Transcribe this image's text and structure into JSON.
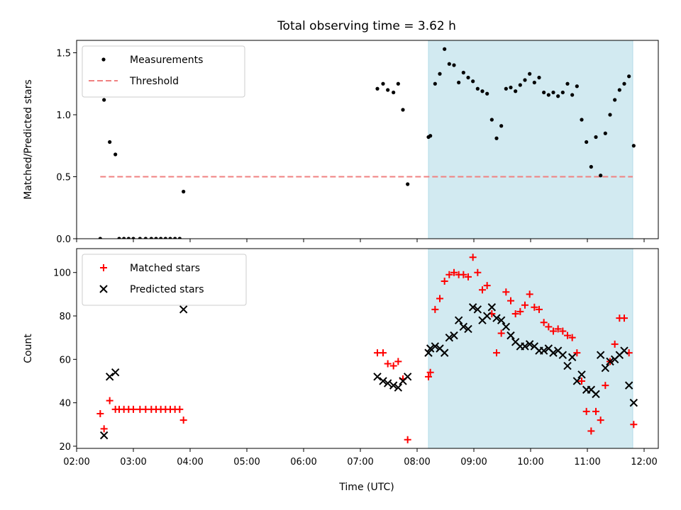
{
  "figure": {
    "title": "Total observing time = 3.62 h",
    "xlabel": "Time (UTC)"
  },
  "chart_data": [
    {
      "type": "scatter",
      "ylabel": "Matched/Predicted stars",
      "xlim": [
        "02:00",
        "12:15"
      ],
      "ylim": [
        0,
        1.6
      ],
      "yticks": [
        "0.0",
        "0.5",
        "1.0",
        "1.5"
      ],
      "xticks": [
        "02:00",
        "03:00",
        "04:00",
        "05:00",
        "06:00",
        "07:00",
        "08:00",
        "09:00",
        "10:00",
        "11:00",
        "12:00"
      ],
      "show_xticklabels": false,
      "grid": false,
      "legend": "upper left",
      "shaded_span": {
        "x0": "08:12",
        "x1": "11:48",
        "color": "#add8e6"
      },
      "threshold": {
        "name": "Threshold",
        "value": 0.5,
        "x0": "02:25",
        "x1": "11:48",
        "color": "#f08080",
        "style": "dashed"
      },
      "series": [
        {
          "name": "Measurements",
          "marker": "dot",
          "color": "#000000",
          "points": [
            [
              "02:25",
              0.0
            ],
            [
              "02:29",
              1.12
            ],
            [
              "02:35",
              0.78
            ],
            [
              "02:41",
              0.68
            ],
            [
              "02:45",
              0.0
            ],
            [
              "02:50",
              0.0
            ],
            [
              "02:55",
              0.0
            ],
            [
              "03:00",
              0.0
            ],
            [
              "03:07",
              0.0
            ],
            [
              "03:13",
              0.0
            ],
            [
              "03:19",
              0.0
            ],
            [
              "03:24",
              0.0
            ],
            [
              "03:29",
              0.0
            ],
            [
              "03:34",
              0.0
            ],
            [
              "03:39",
              0.0
            ],
            [
              "03:44",
              0.0
            ],
            [
              "03:49",
              0.0
            ],
            [
              "03:53",
              0.38
            ],
            [
              "07:18",
              1.21
            ],
            [
              "07:24",
              1.25
            ],
            [
              "07:29",
              1.2
            ],
            [
              "07:35",
              1.18
            ],
            [
              "07:40",
              1.25
            ],
            [
              "07:45",
              1.04
            ],
            [
              "07:50",
              0.44
            ],
            [
              "08:12",
              0.82
            ],
            [
              "08:14",
              0.83
            ],
            [
              "08:19",
              1.25
            ],
            [
              "08:24",
              1.33
            ],
            [
              "08:29",
              1.53
            ],
            [
              "08:34",
              1.41
            ],
            [
              "08:39",
              1.4
            ],
            [
              "08:44",
              1.26
            ],
            [
              "08:49",
              1.34
            ],
            [
              "08:54",
              1.3
            ],
            [
              "08:59",
              1.27
            ],
            [
              "09:04",
              1.21
            ],
            [
              "09:09",
              1.19
            ],
            [
              "09:14",
              1.17
            ],
            [
              "09:19",
              0.96
            ],
            [
              "09:24",
              0.81
            ],
            [
              "09:29",
              0.91
            ],
            [
              "09:34",
              1.21
            ],
            [
              "09:39",
              1.22
            ],
            [
              "09:44",
              1.19
            ],
            [
              "09:49",
              1.24
            ],
            [
              "09:54",
              1.28
            ],
            [
              "09:59",
              1.33
            ],
            [
              "10:04",
              1.26
            ],
            [
              "10:09",
              1.3
            ],
            [
              "10:14",
              1.18
            ],
            [
              "10:19",
              1.16
            ],
            [
              "10:24",
              1.18
            ],
            [
              "10:29",
              1.15
            ],
            [
              "10:34",
              1.18
            ],
            [
              "10:39",
              1.25
            ],
            [
              "10:44",
              1.16
            ],
            [
              "10:49",
              1.23
            ],
            [
              "10:54",
              0.96
            ],
            [
              "10:59",
              0.78
            ],
            [
              "11:04",
              0.58
            ],
            [
              "11:09",
              0.82
            ],
            [
              "11:14",
              0.51
            ],
            [
              "11:19",
              0.85
            ],
            [
              "11:24",
              1.0
            ],
            [
              "11:29",
              1.12
            ],
            [
              "11:34",
              1.2
            ],
            [
              "11:39",
              1.25
            ],
            [
              "11:44",
              1.31
            ],
            [
              "11:49",
              0.75
            ]
          ]
        }
      ]
    },
    {
      "type": "scatter",
      "ylabel": "Count",
      "xlabel": "Time (UTC)",
      "xlim": [
        "02:00",
        "12:15"
      ],
      "ylim": [
        19,
        111
      ],
      "yticks": [
        "20",
        "40",
        "60",
        "80",
        "100"
      ],
      "xticks": [
        "02:00",
        "03:00",
        "04:00",
        "05:00",
        "06:00",
        "07:00",
        "08:00",
        "09:00",
        "10:00",
        "11:00",
        "12:00"
      ],
      "grid": false,
      "legend": "upper left",
      "shaded_span": {
        "x0": "08:12",
        "x1": "11:48",
        "color": "#add8e6"
      },
      "series": [
        {
          "name": "Matched stars",
          "marker": "plus",
          "color": "#ff0000",
          "points": [
            [
              "02:25",
              35
            ],
            [
              "02:29",
              28
            ],
            [
              "02:35",
              41
            ],
            [
              "02:41",
              37
            ],
            [
              "02:45",
              37
            ],
            [
              "02:50",
              37
            ],
            [
              "02:55",
              37
            ],
            [
              "03:00",
              37
            ],
            [
              "03:07",
              37
            ],
            [
              "03:13",
              37
            ],
            [
              "03:19",
              37
            ],
            [
              "03:24",
              37
            ],
            [
              "03:29",
              37
            ],
            [
              "03:34",
              37
            ],
            [
              "03:39",
              37
            ],
            [
              "03:44",
              37
            ],
            [
              "03:49",
              37
            ],
            [
              "03:53",
              32
            ],
            [
              "07:18",
              63
            ],
            [
              "07:24",
              63
            ],
            [
              "07:29",
              58
            ],
            [
              "07:35",
              57
            ],
            [
              "07:40",
              59
            ],
            [
              "07:45",
              51
            ],
            [
              "07:50",
              23
            ],
            [
              "08:12",
              52
            ],
            [
              "08:14",
              54
            ],
            [
              "08:19",
              83
            ],
            [
              "08:24",
              88
            ],
            [
              "08:29",
              96
            ],
            [
              "08:34",
              99
            ],
            [
              "08:39",
              100
            ],
            [
              "08:44",
              99
            ],
            [
              "08:49",
              99
            ],
            [
              "08:54",
              98
            ],
            [
              "08:59",
              107
            ],
            [
              "09:04",
              100
            ],
            [
              "09:09",
              92
            ],
            [
              "09:14",
              94
            ],
            [
              "09:19",
              81
            ],
            [
              "09:24",
              63
            ],
            [
              "09:29",
              72
            ],
            [
              "09:34",
              91
            ],
            [
              "09:39",
              87
            ],
            [
              "09:44",
              81
            ],
            [
              "09:49",
              82
            ],
            [
              "09:54",
              85
            ],
            [
              "09:59",
              90
            ],
            [
              "10:04",
              84
            ],
            [
              "10:09",
              83
            ],
            [
              "10:14",
              77
            ],
            [
              "10:19",
              75
            ],
            [
              "10:24",
              73
            ],
            [
              "10:29",
              74
            ],
            [
              "10:34",
              73
            ],
            [
              "10:39",
              71
            ],
            [
              "10:44",
              70
            ],
            [
              "10:49",
              63
            ],
            [
              "10:54",
              50
            ],
            [
              "10:59",
              36
            ],
            [
              "11:04",
              27
            ],
            [
              "11:09",
              36
            ],
            [
              "11:14",
              32
            ],
            [
              "11:19",
              48
            ],
            [
              "11:24",
              59
            ],
            [
              "11:29",
              67
            ],
            [
              "11:34",
              79
            ],
            [
              "11:39",
              79
            ],
            [
              "11:44",
              63
            ],
            [
              "11:49",
              30
            ]
          ]
        },
        {
          "name": "Predicted stars",
          "marker": "x",
          "color": "#000000",
          "points": [
            [
              "02:29",
              25
            ],
            [
              "02:35",
              52
            ],
            [
              "02:41",
              54
            ],
            [
              "03:53",
              83
            ],
            [
              "07:18",
              52
            ],
            [
              "07:24",
              50
            ],
            [
              "07:29",
              49
            ],
            [
              "07:35",
              48
            ],
            [
              "07:40",
              47
            ],
            [
              "07:45",
              50
            ],
            [
              "07:50",
              52
            ],
            [
              "08:12",
              63
            ],
            [
              "08:14",
              65
            ],
            [
              "08:19",
              66
            ],
            [
              "08:24",
              65
            ],
            [
              "08:29",
              63
            ],
            [
              "08:34",
              70
            ],
            [
              "08:39",
              71
            ],
            [
              "08:44",
              78
            ],
            [
              "08:49",
              75
            ],
            [
              "08:54",
              74
            ],
            [
              "08:59",
              84
            ],
            [
              "09:04",
              83
            ],
            [
              "09:09",
              78
            ],
            [
              "09:14",
              80
            ],
            [
              "09:19",
              84
            ],
            [
              "09:24",
              79
            ],
            [
              "09:29",
              78
            ],
            [
              "09:34",
              75
            ],
            [
              "09:39",
              71
            ],
            [
              "09:44",
              68
            ],
            [
              "09:49",
              66
            ],
            [
              "09:54",
              66
            ],
            [
              "09:59",
              67
            ],
            [
              "10:04",
              66
            ],
            [
              "10:09",
              64
            ],
            [
              "10:14",
              64
            ],
            [
              "10:19",
              65
            ],
            [
              "10:24",
              63
            ],
            [
              "10:29",
              64
            ],
            [
              "10:34",
              62
            ],
            [
              "10:39",
              57
            ],
            [
              "10:44",
              61
            ],
            [
              "10:49",
              50
            ],
            [
              "10:54",
              53
            ],
            [
              "10:59",
              46
            ],
            [
              "11:04",
              46
            ],
            [
              "11:09",
              44
            ],
            [
              "11:14",
              62
            ],
            [
              "11:19",
              56
            ],
            [
              "11:24",
              59
            ],
            [
              "11:29",
              60
            ],
            [
              "11:34",
              62
            ],
            [
              "11:39",
              64
            ],
            [
              "11:44",
              48
            ],
            [
              "11:49",
              40
            ]
          ]
        }
      ]
    }
  ]
}
